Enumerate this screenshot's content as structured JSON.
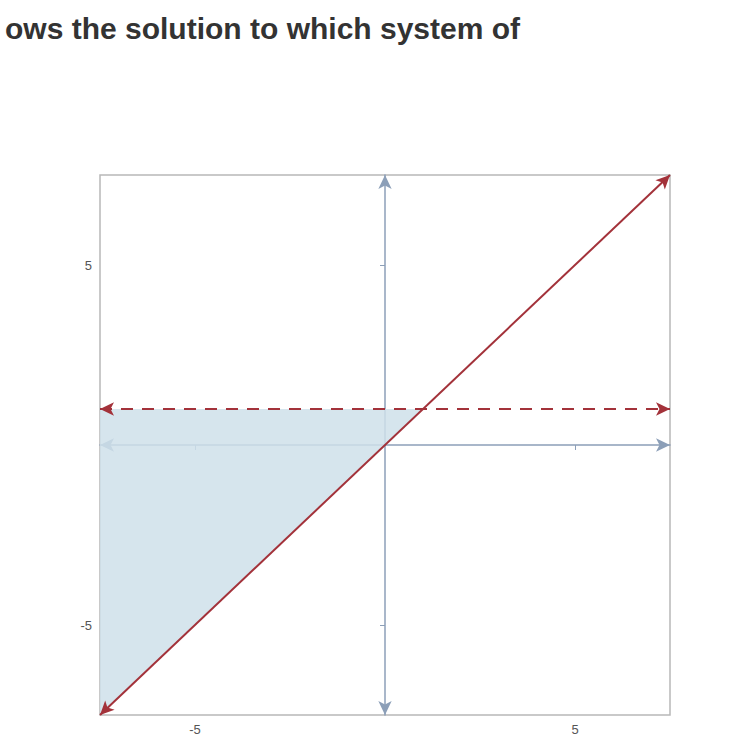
{
  "chart_data": {
    "type": "line",
    "title": "ows the solution to which system of",
    "xlim": [
      -7.5,
      7.5
    ],
    "ylim": [
      -7.5,
      7.5
    ],
    "xticks": [
      -5,
      5
    ],
    "yticks": [
      -5,
      5
    ],
    "grid": false,
    "series": [
      {
        "type": "area",
        "x": [
          -7.5,
          1,
          -7.5
        ],
        "values": [
          1,
          1,
          -7.5
        ],
        "color": "#cfe0ea"
      },
      {
        "type": "line",
        "x": [
          -7.5,
          7.5
        ],
        "values": [
          -7.5,
          7.5
        ],
        "color": "#a3323a",
        "line_style": "solid",
        "marker": "arrow"
      },
      {
        "type": "line",
        "x": [
          -7.5,
          7.5
        ],
        "values": [
          1,
          1
        ],
        "color": "#a3323a",
        "line_style": "dashed",
        "marker": "arrow"
      }
    ]
  }
}
